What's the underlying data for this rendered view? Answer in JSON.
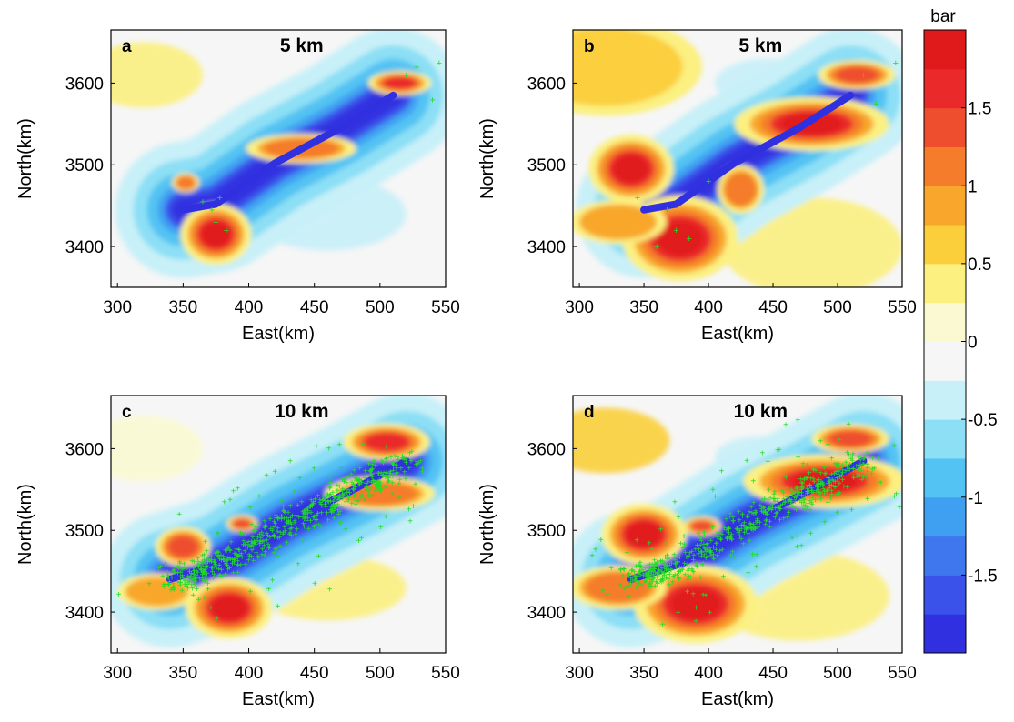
{
  "colors": {
    "scale": [
      "#3030e0",
      "#3a52ea",
      "#3f78ee",
      "#3fa0f2",
      "#52c3f3",
      "#8cdff5",
      "#c8f0f8",
      "#f6f6f6",
      "#fbf9d2",
      "#fbf080",
      "#fbcf3c",
      "#f8a72c",
      "#f47c2a",
      "#ee4e2e",
      "#ea2a2a",
      "#e01a1a"
    ],
    "scatter": "#22dd22"
  },
  "colorbar": {
    "unit": "bar",
    "ticks": [
      "1.5",
      "1",
      "0.5",
      "0",
      "-0.5",
      "-1",
      "-1.5"
    ],
    "tick_values": [
      1.5,
      1,
      0.5,
      0,
      -0.5,
      -1,
      -1.5
    ],
    "range": [
      -2,
      2
    ]
  },
  "chart_data": [
    {
      "type": "heatmap",
      "panel": "a",
      "depth": "5 km",
      "xlabel": "East(km)",
      "ylabel": "North(km)",
      "xlim": [
        295,
        550
      ],
      "ylim": [
        3350,
        3665
      ],
      "xticks": [
        "300",
        "350",
        "400",
        "450",
        "500",
        "550"
      ],
      "xtick_values": [
        300,
        350,
        400,
        450,
        500,
        550
      ],
      "yticks": [
        "3400",
        "3500",
        "3600"
      ],
      "ytick_values": [
        3400,
        3500,
        3600
      ],
      "fault": [
        [
          350,
          3445
        ],
        [
          375,
          3452
        ],
        [
          420,
          3502
        ],
        [
          470,
          3545
        ],
        [
          510,
          3585
        ]
      ],
      "lobes": [
        [
          375,
          3415,
          18,
          25,
          1.9
        ],
        [
          352,
          3478,
          7,
          8,
          1.2
        ],
        [
          515,
          3600,
          16,
          10,
          1.5
        ],
        [
          440,
          3520,
          28,
          12,
          1.0
        ],
        [
          320,
          3610,
          45,
          40,
          0.25
        ],
        [
          460,
          3440,
          60,
          45,
          -0.3
        ],
        [
          500,
          3640,
          30,
          15,
          -0.35
        ],
        [
          330,
          3440,
          30,
          20,
          0.5
        ]
      ],
      "scatter": [
        [
          375,
          3430
        ],
        [
          383,
          3420
        ],
        [
          372,
          3445
        ],
        [
          520,
          3610
        ],
        [
          528,
          3620
        ],
        [
          545,
          3625
        ],
        [
          540,
          3580
        ],
        [
          365,
          3455
        ],
        [
          378,
          3460
        ]
      ]
    },
    {
      "type": "heatmap",
      "panel": "b",
      "depth": "5 km",
      "xlabel": "East(km)",
      "ylabel": "North(km)",
      "xlim": [
        295,
        550
      ],
      "ylim": [
        3350,
        3665
      ],
      "xticks": [
        "300",
        "350",
        "400",
        "450",
        "500",
        "550"
      ],
      "xtick_values": [
        300,
        350,
        400,
        450,
        500,
        550
      ],
      "yticks": [
        "3400",
        "3500",
        "3600"
      ],
      "ytick_values": [
        3400,
        3500,
        3600
      ],
      "fault": [
        [
          350,
          3445
        ],
        [
          375,
          3452
        ],
        [
          420,
          3502
        ],
        [
          470,
          3545
        ],
        [
          510,
          3585
        ]
      ],
      "lobes": [
        [
          378,
          3410,
          30,
          35,
          1.9
        ],
        [
          340,
          3495,
          22,
          28,
          1.9
        ],
        [
          425,
          3470,
          12,
          20,
          1.2
        ],
        [
          480,
          3550,
          40,
          22,
          1.9
        ],
        [
          515,
          3610,
          20,
          12,
          1.3
        ],
        [
          320,
          3620,
          50,
          40,
          0.6
        ],
        [
          480,
          3400,
          70,
          60,
          0.4
        ],
        [
          445,
          3600,
          40,
          30,
          -0.5
        ],
        [
          540,
          3560,
          18,
          15,
          -0.4
        ],
        [
          330,
          3430,
          25,
          18,
          0.9
        ]
      ],
      "scatter": [
        [
          375,
          3420
        ],
        [
          385,
          3410
        ],
        [
          368,
          3445
        ],
        [
          345,
          3460
        ],
        [
          520,
          3610
        ],
        [
          545,
          3625
        ],
        [
          530,
          3575
        ],
        [
          360,
          3400
        ],
        [
          400,
          3480
        ]
      ]
    },
    {
      "type": "heatmap",
      "panel": "c",
      "depth": "10 km",
      "xlabel": "East(km)",
      "ylabel": "North(km)",
      "xlim": [
        295,
        550
      ],
      "ylim": [
        3350,
        3665
      ],
      "xticks": [
        "300",
        "350",
        "400",
        "450",
        "500",
        "550"
      ],
      "xtick_values": [
        300,
        350,
        400,
        450,
        500,
        550
      ],
      "yticks": [
        "3400",
        "3500",
        "3600"
      ],
      "ytick_values": [
        3400,
        3500,
        3600
      ],
      "fault": [
        [
          340,
          3440
        ],
        [
          380,
          3460
        ],
        [
          430,
          3510
        ],
        [
          480,
          3550
        ],
        [
          520,
          3585
        ]
      ],
      "lobes": [
        [
          385,
          3405,
          22,
          25,
          1.8
        ],
        [
          350,
          3480,
          14,
          16,
          1.3
        ],
        [
          395,
          3508,
          8,
          7,
          1.3
        ],
        [
          505,
          3608,
          22,
          15,
          1.5
        ],
        [
          500,
          3545,
          28,
          14,
          1.2
        ],
        [
          320,
          3600,
          45,
          40,
          0.2
        ],
        [
          460,
          3430,
          60,
          40,
          0.25
        ],
        [
          330,
          3425,
          20,
          15,
          0.8
        ]
      ],
      "scatter": []
    },
    {
      "type": "heatmap",
      "panel": "d",
      "depth": "10 km",
      "xlabel": "East(km)",
      "ylabel": "North(km)",
      "xlim": [
        295,
        550
      ],
      "ylim": [
        3350,
        3665
      ],
      "xticks": [
        "300",
        "350",
        "400",
        "450",
        "500",
        "550"
      ],
      "xtick_values": [
        300,
        350,
        400,
        450,
        500,
        550
      ],
      "yticks": [
        "3400",
        "3500",
        "3600"
      ],
      "ytick_values": [
        3400,
        3500,
        3600
      ],
      "fault": [
        [
          340,
          3440
        ],
        [
          380,
          3460
        ],
        [
          430,
          3510
        ],
        [
          480,
          3550
        ],
        [
          520,
          3585
        ]
      ],
      "lobes": [
        [
          390,
          3410,
          32,
          32,
          1.9
        ],
        [
          350,
          3495,
          22,
          25,
          1.9
        ],
        [
          395,
          3505,
          10,
          8,
          1.4
        ],
        [
          490,
          3560,
          42,
          22,
          1.9
        ],
        [
          510,
          3612,
          20,
          12,
          1.4
        ],
        [
          320,
          3610,
          50,
          40,
          0.5
        ],
        [
          470,
          3420,
          70,
          55,
          0.45
        ],
        [
          440,
          3590,
          35,
          25,
          -0.5
        ],
        [
          330,
          3430,
          25,
          18,
          1.0
        ]
      ],
      "scatter": []
    }
  ]
}
